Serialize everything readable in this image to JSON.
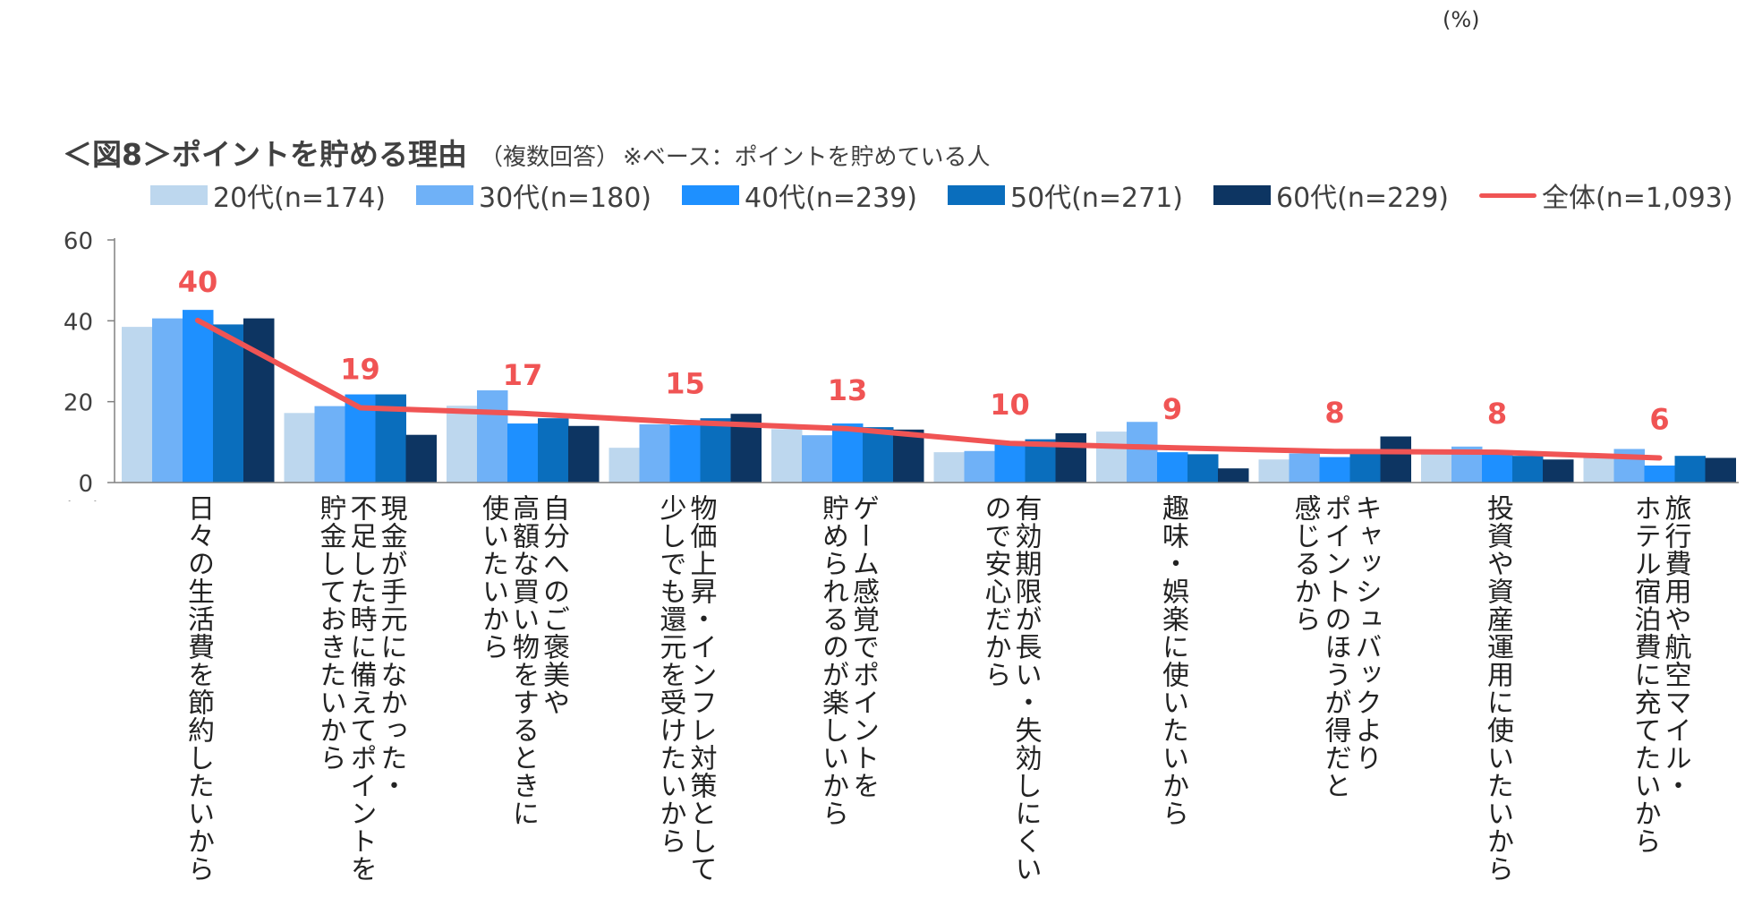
{
  "corner_unit": "(%)",
  "title": {
    "main": "＜図8＞ポイントを貯める理由",
    "sub": "（複数回答）",
    "note": "※ベース：ポイントを貯めている人"
  },
  "colors": {
    "s20": "#bdd7ee",
    "s30": "#6fb1f7",
    "s40": "#1e90ff",
    "s50": "#0a6ebd",
    "s60": "#0d3562",
    "total": "#f05454",
    "axis": "#808080"
  },
  "chart_data": {
    "type": "bar",
    "title": "＜図8＞ポイントを貯める理由",
    "ylim": [
      0,
      60
    ],
    "yticks": [
      "0",
      "20",
      "40",
      "60"
    ],
    "ylabel": "(%)",
    "categories": [
      "日々の生活費を節約したいから",
      "現金が手元になかった・\n不足した時に備えてポイントを\n貯金しておきたいから",
      "自分へのご褒美や\n高額な買い物をするときに\n使いたいから",
      "物価上昇・インフレ対策として\n少しでも還元を受けたいから",
      "ゲーム感覚でポイントを\n貯められるのが楽しいから",
      "有効期限が長い・失効しにくい\nので安心だから",
      "趣味・娯楽に使いたいから",
      "キャッシュバックより\nポイントのほうが得だと\n感じるから",
      "投資や資産運用に使いたいから",
      "旅行費用や航空マイル・\nホテル宿泊費に充てたいから"
    ],
    "series": [
      {
        "name": "20代(n=174)",
        "values": [
          38.5,
          17.2,
          19.0,
          8.6,
          13.2,
          7.5,
          12.6,
          5.7,
          8.0,
          6.3
        ]
      },
      {
        "name": "30代(n=180)",
        "values": [
          40.6,
          18.9,
          22.8,
          14.4,
          11.7,
          7.8,
          15.0,
          7.2,
          8.9,
          8.3
        ]
      },
      {
        "name": "40代(n=239)",
        "values": [
          42.7,
          21.8,
          14.6,
          14.2,
          14.6,
          10.0,
          7.5,
          6.3,
          7.1,
          4.2
        ]
      },
      {
        "name": "50代(n=271)",
        "values": [
          39.1,
          21.8,
          15.9,
          15.9,
          13.7,
          10.7,
          7.0,
          7.4,
          6.6,
          6.6
        ]
      },
      {
        "name": "60代(n=229)",
        "values": [
          40.6,
          11.8,
          14.0,
          17.0,
          13.1,
          12.2,
          3.5,
          11.4,
          5.7,
          6.1
        ]
      }
    ],
    "total": {
      "name": "全体(n=1,093)",
      "values": [
        40.1,
        18.5,
        17.1,
        14.9,
        13.3,
        9.7,
        8.6,
        7.7,
        7.5,
        6.1
      ],
      "labels": [
        "40",
        "19",
        "17",
        "15",
        "13",
        "10",
        "9",
        "8",
        "8",
        "6"
      ]
    }
  }
}
